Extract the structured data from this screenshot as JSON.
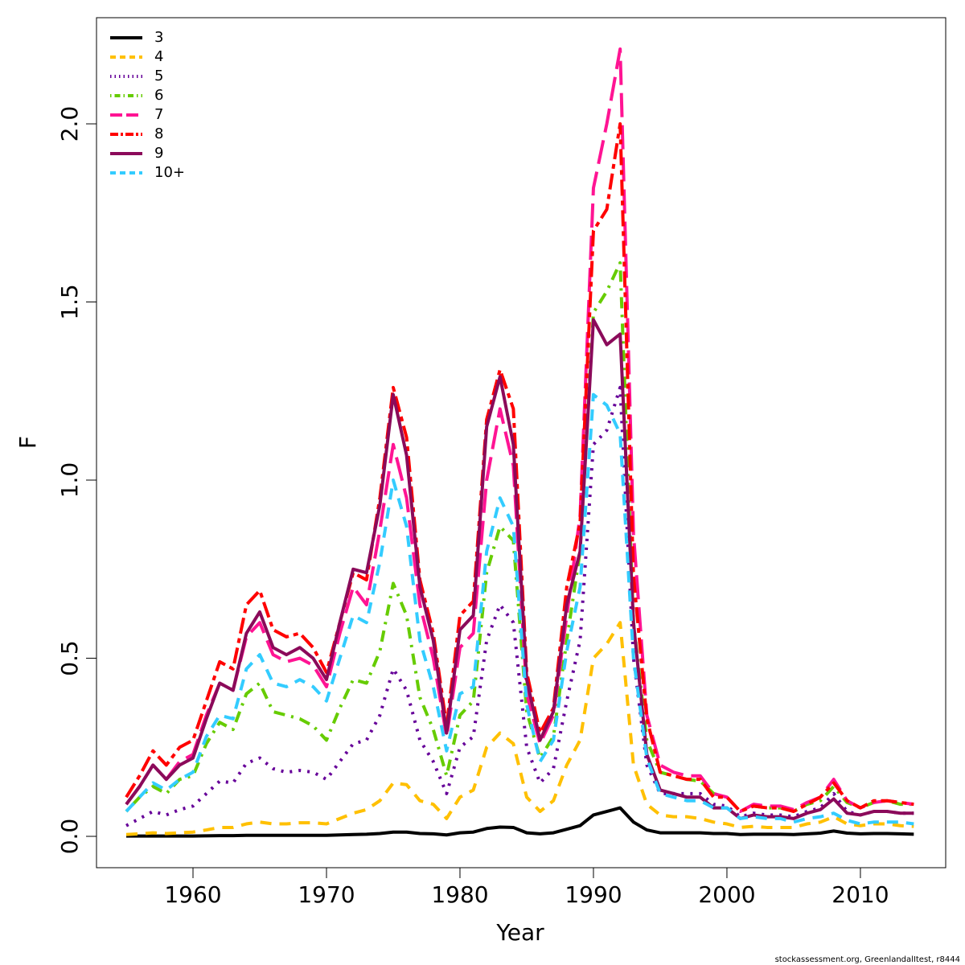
{
  "chart_data": {
    "type": "line",
    "xlabel": "Year",
    "ylabel": "F",
    "footnote": "stockassessment.org, GreenlandalItest, r8444",
    "legend": "top-left",
    "x": [
      1955,
      1956,
      1957,
      1958,
      1959,
      1960,
      1961,
      1962,
      1963,
      1964,
      1965,
      1966,
      1967,
      1968,
      1969,
      1970,
      1971,
      1972,
      1973,
      1974,
      1975,
      1976,
      1977,
      1978,
      1979,
      1980,
      1981,
      1982,
      1983,
      1984,
      1985,
      1986,
      1987,
      1988,
      1989,
      1990,
      1991,
      1992,
      1993,
      1994,
      1995,
      1996,
      1997,
      1998,
      1999,
      2000,
      2001,
      2002,
      2003,
      2004,
      2005,
      2006,
      2007,
      2008,
      2009,
      2010,
      2011,
      2012,
      2013,
      2014
    ],
    "xlim": [
      1952.77,
      2016.39
    ],
    "xticks": [
      1960,
      1970,
      1980,
      1990,
      2000,
      2010
    ],
    "ylim": [
      -0.088,
      2.298
    ],
    "yticks": [
      {
        "value": 0,
        "label": "0.0"
      },
      0.5,
      {
        "value": 1,
        "label": "1.0"
      },
      1.5,
      {
        "value": 2,
        "label": "2.0"
      }
    ],
    "series": [
      {
        "name": "3",
        "color": "#000000",
        "dash": "none",
        "values": [
          0.001,
          0.001,
          0.001,
          0.001,
          0.001,
          0.001,
          0.0015,
          0.002,
          0.002,
          0.003,
          0.003,
          0.003,
          0.003,
          0.003,
          0.003,
          0.003,
          0.004,
          0.005,
          0.006,
          0.008,
          0.012,
          0.012,
          0.008,
          0.007,
          0.004,
          0.01,
          0.012,
          0.022,
          0.026,
          0.025,
          0.01,
          0.007,
          0.01,
          0.02,
          0.03,
          0.06,
          0.07,
          0.08,
          0.04,
          0.018,
          0.01,
          0.01,
          0.01,
          0.01,
          0.008,
          0.008,
          0.005,
          0.006,
          0.006,
          0.006,
          0.005,
          0.007,
          0.009,
          0.015,
          0.009,
          0.007,
          0.008,
          0.008,
          0.007,
          0.006
        ]
      },
      {
        "name": "4",
        "color": "#FFC000",
        "dash": "14,10",
        "values": [
          0.005,
          0.007,
          0.01,
          0.008,
          0.01,
          0.012,
          0.018,
          0.025,
          0.025,
          0.035,
          0.04,
          0.035,
          0.035,
          0.038,
          0.038,
          0.035,
          0.05,
          0.065,
          0.075,
          0.1,
          0.15,
          0.145,
          0.1,
          0.09,
          0.05,
          0.11,
          0.13,
          0.25,
          0.29,
          0.26,
          0.11,
          0.07,
          0.1,
          0.2,
          0.27,
          0.5,
          0.54,
          0.6,
          0.2,
          0.09,
          0.06,
          0.055,
          0.055,
          0.05,
          0.04,
          0.035,
          0.025,
          0.028,
          0.025,
          0.025,
          0.025,
          0.035,
          0.04,
          0.055,
          0.035,
          0.03,
          0.035,
          0.035,
          0.03,
          0.028
        ]
      },
      {
        "name": "5",
        "color": "#660099",
        "dash": "3,8",
        "values": [
          0.03,
          0.05,
          0.07,
          0.06,
          0.075,
          0.085,
          0.12,
          0.155,
          0.15,
          0.205,
          0.22,
          0.19,
          0.18,
          0.185,
          0.18,
          0.16,
          0.21,
          0.26,
          0.27,
          0.34,
          0.47,
          0.41,
          0.27,
          0.21,
          0.12,
          0.25,
          0.28,
          0.55,
          0.65,
          0.6,
          0.25,
          0.15,
          0.19,
          0.38,
          0.55,
          1.1,
          1.14,
          1.26,
          0.5,
          0.2,
          0.12,
          0.12,
          0.12,
          0.12,
          0.09,
          0.085,
          0.055,
          0.065,
          0.06,
          0.06,
          0.055,
          0.07,
          0.08,
          0.12,
          0.07,
          0.06,
          0.07,
          0.07,
          0.065,
          0.065
        ]
      },
      {
        "name": "6",
        "color": "#66CC00",
        "dash": "3,8,14,8",
        "values": [
          0.07,
          0.11,
          0.14,
          0.12,
          0.16,
          0.17,
          0.26,
          0.32,
          0.3,
          0.4,
          0.43,
          0.35,
          0.34,
          0.33,
          0.31,
          0.27,
          0.36,
          0.44,
          0.43,
          0.52,
          0.71,
          0.62,
          0.39,
          0.3,
          0.17,
          0.34,
          0.38,
          0.74,
          0.87,
          0.83,
          0.35,
          0.22,
          0.28,
          0.55,
          0.8,
          1.47,
          1.53,
          1.61,
          0.6,
          0.27,
          0.18,
          0.17,
          0.16,
          0.155,
          0.12,
          0.11,
          0.07,
          0.085,
          0.08,
          0.08,
          0.07,
          0.09,
          0.1,
          0.14,
          0.095,
          0.08,
          0.095,
          0.1,
          0.09,
          0.09
        ]
      },
      {
        "name": "7",
        "color": "#FF1493",
        "dash": "30,10",
        "values": [
          0.09,
          0.14,
          0.2,
          0.16,
          0.21,
          0.23,
          0.34,
          0.43,
          0.41,
          0.56,
          0.6,
          0.51,
          0.49,
          0.5,
          0.48,
          0.42,
          0.57,
          0.7,
          0.65,
          0.86,
          1.1,
          0.95,
          0.65,
          0.5,
          0.28,
          0.53,
          0.57,
          1.0,
          1.2,
          1.04,
          0.4,
          0.26,
          0.34,
          0.62,
          0.9,
          1.82,
          2.0,
          2.21,
          0.85,
          0.34,
          0.2,
          0.18,
          0.17,
          0.17,
          0.12,
          0.11,
          0.07,
          0.09,
          0.085,
          0.085,
          0.075,
          0.095,
          0.11,
          0.16,
          0.1,
          0.08,
          0.095,
          0.1,
          0.095,
          0.09
        ]
      },
      {
        "name": "8",
        "color": "#FF0000",
        "dash": "20,6,6,6",
        "values": [
          0.11,
          0.17,
          0.24,
          0.2,
          0.25,
          0.27,
          0.38,
          0.49,
          0.47,
          0.65,
          0.69,
          0.58,
          0.56,
          0.57,
          0.53,
          0.46,
          0.6,
          0.74,
          0.72,
          0.95,
          1.26,
          1.12,
          0.72,
          0.57,
          0.31,
          0.62,
          0.66,
          1.17,
          1.31,
          1.2,
          0.46,
          0.29,
          0.36,
          0.7,
          0.88,
          1.7,
          1.76,
          2.0,
          0.73,
          0.33,
          0.18,
          0.17,
          0.16,
          0.16,
          0.11,
          0.11,
          0.07,
          0.085,
          0.08,
          0.08,
          0.07,
          0.09,
          0.11,
          0.15,
          0.1,
          0.08,
          0.1,
          0.1,
          0.095,
          0.09
        ]
      },
      {
        "name": "9",
        "color": "#8B0A5A",
        "dash": "none",
        "values": [
          0.09,
          0.14,
          0.2,
          0.16,
          0.2,
          0.22,
          0.33,
          0.43,
          0.41,
          0.57,
          0.63,
          0.53,
          0.51,
          0.53,
          0.5,
          0.44,
          0.6,
          0.75,
          0.74,
          0.93,
          1.24,
          1.07,
          0.7,
          0.55,
          0.29,
          0.58,
          0.62,
          1.15,
          1.29,
          1.1,
          0.44,
          0.27,
          0.35,
          0.65,
          0.8,
          1.45,
          1.38,
          1.41,
          0.6,
          0.23,
          0.13,
          0.12,
          0.11,
          0.11,
          0.08,
          0.08,
          0.05,
          0.06,
          0.055,
          0.055,
          0.05,
          0.065,
          0.075,
          0.105,
          0.065,
          0.06,
          0.07,
          0.07,
          0.065,
          0.065
        ]
      },
      {
        "name": "10+",
        "color": "#33CCFF",
        "dash": "14,10",
        "values": [
          0.07,
          0.11,
          0.15,
          0.13,
          0.16,
          0.18,
          0.28,
          0.34,
          0.33,
          0.47,
          0.51,
          0.43,
          0.42,
          0.44,
          0.42,
          0.38,
          0.5,
          0.62,
          0.6,
          0.77,
          1.0,
          0.87,
          0.55,
          0.42,
          0.24,
          0.4,
          0.42,
          0.8,
          0.95,
          0.87,
          0.37,
          0.21,
          0.27,
          0.52,
          0.7,
          1.24,
          1.21,
          1.13,
          0.5,
          0.22,
          0.12,
          0.11,
          0.1,
          0.1,
          0.08,
          0.08,
          0.05,
          0.055,
          0.05,
          0.05,
          0.04,
          0.05,
          0.055,
          0.065,
          0.045,
          0.035,
          0.04,
          0.04,
          0.04,
          0.035
        ]
      }
    ]
  }
}
